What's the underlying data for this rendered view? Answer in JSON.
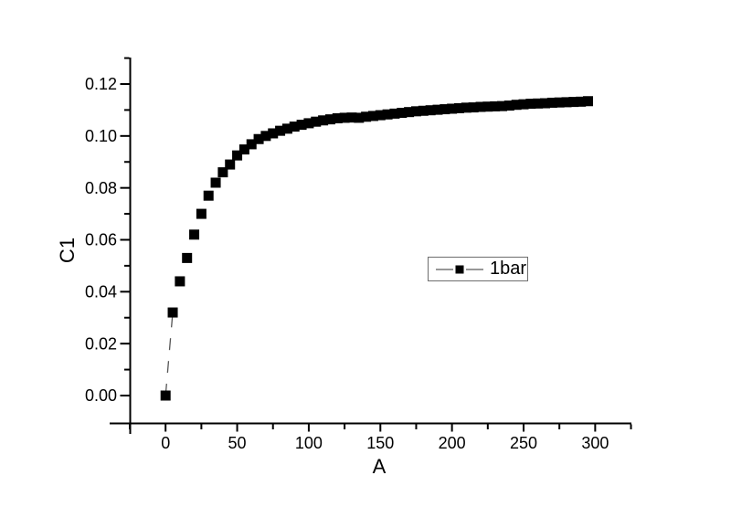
{
  "figure": {
    "background_color": "#ffffff",
    "axis_color": "#000000",
    "tick_label_color": "#000000"
  },
  "chart_data": {
    "type": "line",
    "title": "",
    "xlabel": "A",
    "ylabel": "C1",
    "xlim": [
      -25,
      325
    ],
    "ylim": [
      -0.01,
      0.13
    ],
    "x_major_ticks": [
      0,
      50,
      100,
      150,
      200,
      250,
      300
    ],
    "x_tick_labels": [
      "0",
      "50",
      "100",
      "150",
      "200",
      "250",
      "300"
    ],
    "x_minor_step": 25,
    "y_major_ticks": [
      0.0,
      0.02,
      0.04,
      0.06,
      0.08,
      0.1,
      0.12
    ],
    "y_tick_labels": [
      "0.00",
      "0.02",
      "0.04",
      "0.06",
      "0.08",
      "0.10",
      "0.12"
    ],
    "y_minor_step": 0.01,
    "grid": false,
    "legend": {
      "visible": true,
      "position": "inside-right",
      "border": true,
      "entries": [
        "1bar"
      ]
    },
    "series": [
      {
        "name": "1bar",
        "marker": "filled-square",
        "marker_color": "#000000",
        "line_style": "dashed",
        "line_color": "#555555",
        "x": [
          0,
          5,
          10,
          15,
          20,
          25,
          30,
          35,
          40,
          45,
          50,
          55,
          60,
          65,
          70,
          75,
          80,
          85,
          90,
          95,
          100,
          105,
          110,
          115,
          120,
          125,
          130,
          135,
          140,
          145,
          150,
          155,
          160,
          165,
          170,
          175,
          180,
          185,
          190,
          195,
          200,
          205,
          210,
          215,
          220,
          225,
          230,
          235,
          240,
          245,
          250,
          255,
          260,
          265,
          270,
          275,
          280,
          285,
          290,
          295
        ],
        "y": [
          0.0,
          0.032,
          0.044,
          0.053,
          0.062,
          0.07,
          0.077,
          0.082,
          0.086,
          0.089,
          0.0925,
          0.0948,
          0.0968,
          0.0988,
          0.1,
          0.101,
          0.102,
          0.1028,
          0.1036,
          0.1043,
          0.1049,
          0.1055,
          0.106,
          0.1064,
          0.1068,
          0.107,
          0.1071,
          0.107,
          0.1074,
          0.1077,
          0.108,
          0.1083,
          0.1086,
          0.1089,
          0.1092,
          0.1095,
          0.1097,
          0.1099,
          0.1101,
          0.1103,
          0.1105,
          0.1107,
          0.1109,
          0.111,
          0.1112,
          0.1113,
          0.1114,
          0.1115,
          0.1117,
          0.112,
          0.1122,
          0.1124,
          0.1125,
          0.1126,
          0.1128,
          0.1129,
          0.113,
          0.1131,
          0.1132,
          0.1134
        ]
      }
    ]
  }
}
